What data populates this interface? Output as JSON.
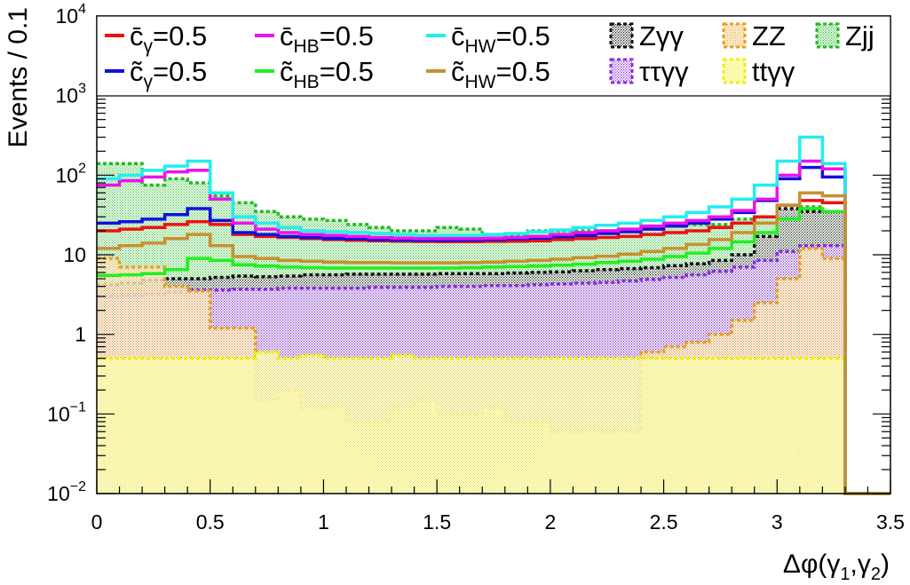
{
  "chart_data": {
    "type": "histogram",
    "xlabel": "Δφ(γ₁,γ₂)",
    "ylabel": "Events / 0.1",
    "xlim": [
      0,
      3.5
    ],
    "ylim": [
      0.01,
      10000
    ],
    "yscale": "log",
    "bin_width": 0.1,
    "x_ticks": [
      "0",
      "0.5",
      "1",
      "1.5",
      "2",
      "2.5",
      "3",
      "3.5"
    ],
    "y_ticks": [
      {
        "base": "10",
        "exp": "−2",
        "value": 0.01
      },
      {
        "base": "10",
        "exp": "−1",
        "value": 0.1
      },
      {
        "base": "1",
        "exp": "",
        "value": 1
      },
      {
        "base": "10",
        "exp": "",
        "value": 10
      },
      {
        "base": "10",
        "exp": "2",
        "value": 100
      },
      {
        "base": "10",
        "exp": "3",
        "value": 1000
      },
      {
        "base": "10",
        "exp": "4",
        "value": 10000
      }
    ],
    "legend_position": "top",
    "x_bin_edges": [
      0,
      0.1,
      0.2,
      0.3,
      0.4,
      0.5,
      0.6,
      0.7,
      0.8,
      0.9,
      1.0,
      1.1,
      1.2,
      1.3,
      1.4,
      1.5,
      1.6,
      1.7,
      1.8,
      1.9,
      2.0,
      2.1,
      2.2,
      2.3,
      2.4,
      2.5,
      2.6,
      2.7,
      2.8,
      2.9,
      3.0,
      3.1,
      3.2,
      3.3,
      3.4,
      3.5
    ],
    "backgrounds": [
      {
        "key": "zjj",
        "label": "Zjj",
        "color": "#22bb22",
        "values": [
          140,
          140,
          75,
          90,
          80,
          55,
          45,
          35,
          30,
          28,
          27,
          24,
          22,
          20,
          20,
          22,
          21,
          18,
          18,
          20,
          20,
          20,
          20,
          21,
          22,
          23,
          24,
          24,
          28,
          30,
          30,
          40,
          35,
          0.01,
          0.01
        ]
      },
      {
        "key": "zaa",
        "label": "Zγγ",
        "color": "#111111",
        "values": [
          4.2,
          4.4,
          4.8,
          5.0,
          5.0,
          5.2,
          5.4,
          5.3,
          5.4,
          5.6,
          5.6,
          5.7,
          5.7,
          5.7,
          5.7,
          5.8,
          5.8,
          5.8,
          5.9,
          6.0,
          6.1,
          6.3,
          6.5,
          6.7,
          6.9,
          7.3,
          7.7,
          8.5,
          10,
          17,
          38,
          35,
          35,
          0.01,
          0.01
        ]
      },
      {
        "key": "tautauaa",
        "label": "ττγγ",
        "color": "#8a2be2",
        "values": [
          3.0,
          3.1,
          3.2,
          3.4,
          3.6,
          3.6,
          3.7,
          3.7,
          3.8,
          3.8,
          3.8,
          3.8,
          3.9,
          3.9,
          3.9,
          4.0,
          4.0,
          4.1,
          4.1,
          4.2,
          4.3,
          4.4,
          4.5,
          4.7,
          4.9,
          5.2,
          5.6,
          6.2,
          7.0,
          8.5,
          11,
          13,
          13,
          0.01,
          0.01
        ]
      },
      {
        "key": "zz",
        "label": "ZZ",
        "color": "#e8a020",
        "values": [
          9,
          7,
          7,
          4,
          3.5,
          1.2,
          1.2,
          0.15,
          0.2,
          0.12,
          0.12,
          0.08,
          0.08,
          0.12,
          0.15,
          0.1,
          0.1,
          0.12,
          0.08,
          0.08,
          0.06,
          0.06,
          0.06,
          0.06,
          0.6,
          0.7,
          0.8,
          1.0,
          1.5,
          2.5,
          5,
          12,
          9,
          0.01,
          0.01
        ]
      },
      {
        "key": "ttaa",
        "label": "ttγγ",
        "color": "#f0f000",
        "values": [
          0.5,
          0.5,
          0.5,
          0.5,
          0.5,
          0.5,
          0.5,
          0.6,
          0.5,
          0.55,
          0.5,
          0.5,
          0.5,
          0.55,
          0.5,
          0.5,
          0.5,
          0.5,
          0.5,
          0.5,
          0.5,
          0.5,
          0.5,
          0.5,
          0.5,
          0.5,
          0.5,
          0.5,
          0.5,
          0.5,
          0.5,
          0.5,
          0.5,
          0.01,
          0.01
        ]
      }
    ],
    "signals": [
      {
        "key": "cbar_gamma",
        "label_main": "c̄",
        "label_sub": "γ",
        "label_tail": "=0.5",
        "color": "#ee1111",
        "values": [
          20,
          21,
          22,
          24,
          26,
          24,
          18,
          17,
          16.5,
          16,
          15.5,
          15.2,
          15,
          14.8,
          14.7,
          14.6,
          14.6,
          14.7,
          14.8,
          15,
          15.5,
          16,
          16.5,
          17,
          18,
          19,
          20,
          22,
          25,
          30,
          42,
          48,
          45,
          0.01,
          0.01
        ]
      },
      {
        "key": "ctilde_gamma",
        "label_main": "c̃",
        "label_sub": "γ",
        "label_tail": "=0.5",
        "color": "#1111dd",
        "values": [
          25,
          26,
          28,
          32,
          38,
          27,
          19,
          18,
          17,
          16.5,
          16,
          15.8,
          15.5,
          15.3,
          15.2,
          15.2,
          15.3,
          15.5,
          15.8,
          16.2,
          16.8,
          17.5,
          18.5,
          19.5,
          21,
          23,
          25,
          28,
          34,
          48,
          90,
          125,
          95,
          0.01,
          0.01
        ]
      },
      {
        "key": "cbar_hb",
        "label_main": "c̄",
        "label_sub": "HB",
        "label_tail": "=0.5",
        "color": "#ee11ee",
        "values": [
          75,
          85,
          95,
          110,
          115,
          50,
          25,
          21,
          19,
          18,
          17.5,
          17,
          16.5,
          16.2,
          16,
          16,
          16,
          16.2,
          16.5,
          17,
          18,
          19,
          20,
          21,
          23,
          25,
          27,
          30,
          36,
          50,
          100,
          150,
          120,
          0.01,
          0.01
        ]
      },
      {
        "key": "ctilde_hb",
        "label_main": "c̃",
        "label_sub": "HB",
        "label_tail": "=0.5",
        "color": "#22ee22",
        "values": [
          5.5,
          5.6,
          5.8,
          6.5,
          9.0,
          8.5,
          7.5,
          7.2,
          7.0,
          6.9,
          6.8,
          6.8,
          6.8,
          6.8,
          6.8,
          6.8,
          6.9,
          7.0,
          7.1,
          7.2,
          7.4,
          7.6,
          8.0,
          8.3,
          8.8,
          9.5,
          10.5,
          12,
          14.5,
          19,
          28,
          38,
          35,
          0.01,
          0.01
        ]
      },
      {
        "key": "cbar_hw",
        "label_main": "c̄",
        "label_sub": "HW",
        "label_tail": "=0.5",
        "color": "#22eeee",
        "values": [
          90,
          100,
          115,
          130,
          150,
          60,
          30,
          25,
          22,
          20,
          19.5,
          19,
          18.5,
          18,
          17.5,
          17.5,
          17.5,
          18,
          18.5,
          19.5,
          20.5,
          22,
          23.5,
          25,
          27,
          30,
          34,
          40,
          50,
          75,
          150,
          300,
          140,
          0.01,
          0.01
        ]
      },
      {
        "key": "ctilde_hw",
        "label_main": "c̃",
        "label_sub": "HW",
        "label_tail": "=0.5",
        "color": "#c89030",
        "values": [
          12,
          13,
          14,
          16,
          18,
          13,
          9.5,
          9.0,
          8.5,
          8.3,
          8.1,
          8.0,
          8.0,
          7.9,
          7.9,
          7.9,
          8.0,
          8.1,
          8.3,
          8.5,
          8.8,
          9.2,
          9.6,
          10.2,
          11,
          12,
          13.5,
          15.5,
          19,
          25,
          42,
          60,
          55,
          0.01,
          0.01
        ]
      }
    ],
    "legend_order": [
      [
        "cbar_gamma",
        "cbar_hb",
        "cbar_hw",
        "zaa",
        "zz",
        "zjj"
      ],
      [
        "ctilde_gamma",
        "ctilde_hb",
        "ctilde_hw",
        "tautauaa",
        "ttaa"
      ]
    ]
  }
}
